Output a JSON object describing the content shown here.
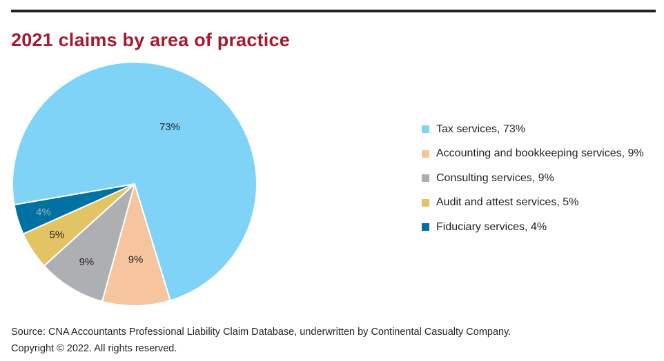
{
  "title": "2021 claims by area of practice",
  "chart_data": {
    "type": "pie",
    "title": "2021 claims by area of practice",
    "categories": [
      "Tax services",
      "Accounting and bookkeeping services",
      "Consulting services",
      "Audit and attest services",
      "Fiduciary services"
    ],
    "values": [
      73,
      9,
      9,
      5,
      4
    ],
    "slice_labels": [
      "73%",
      "9%",
      "9%",
      "5%",
      "4%"
    ],
    "colors": [
      "#7fd3f7",
      "#f6c59f",
      "#aeafb2",
      "#e2c465",
      "#0071a0"
    ],
    "label_colors": [
      "#231f20",
      "#231f20",
      "#231f20",
      "#231f20",
      "#9fb4c2"
    ],
    "legend_position": "right",
    "legend": [
      "Tax services, 73%",
      "Accounting and bookkeeping services, 9%",
      "Consulting services, 9%",
      "Audit and attest services, 5%",
      "Fiduciary services, 4%"
    ]
  },
  "footer": {
    "source": "Source: CNA Accountants Professional Liability Claim Database, underwritten by Continental Casualty Company.",
    "copyright": "Copyright © 2022. All rights reserved."
  }
}
